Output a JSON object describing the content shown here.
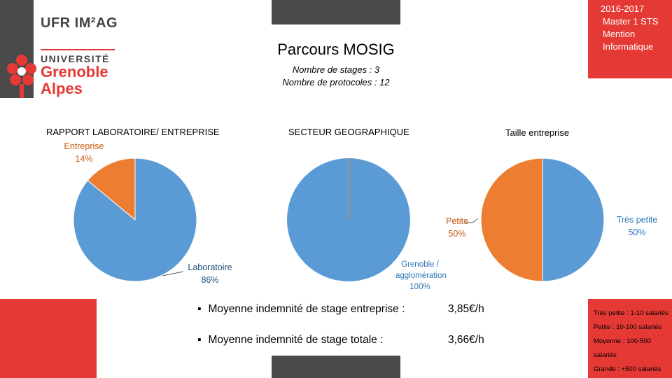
{
  "header": {
    "ufr_logo": "UFR IM²AG",
    "university": {
      "line1": "UNIVERSITÉ",
      "line2": "Grenoble",
      "line3": "Alpes"
    },
    "year": "2016-2017",
    "program": [
      "Master 1 STS",
      "Mention",
      "Informatique"
    ],
    "title": "Parcours MOSIG",
    "subtitle": [
      "Nombre de stages : 3",
      "Nombre de protocoles : 12"
    ]
  },
  "colors": {
    "blue": "#5b9bd5",
    "orange": "#ed7d31",
    "red": "#e53935",
    "gray": "#4a4a4a"
  },
  "chart_data": [
    {
      "type": "pie",
      "title": "RAPPORT LABORATOIRE/ ENTREPRISE",
      "slices": [
        {
          "label": "Entreprise",
          "value": 14,
          "pct": "14%",
          "color": "#ed7d31"
        },
        {
          "label": "Laboratoire",
          "value": 86,
          "pct": "86%",
          "color": "#5b9bd5"
        }
      ]
    },
    {
      "type": "pie",
      "title": "SECTEUR GEOGRAPHIQUE",
      "slices": [
        {
          "label": "Grenoble / agglomération",
          "value": 100,
          "pct": "100%",
          "color": "#5b9bd5"
        }
      ]
    },
    {
      "type": "pie",
      "title": "Taille entreprise",
      "slices": [
        {
          "label": "Très petite",
          "value": 50,
          "pct": "50%",
          "color": "#5b9bd5"
        },
        {
          "label": "Petite",
          "value": 50,
          "pct": "50%",
          "color": "#ed7d31"
        }
      ]
    }
  ],
  "stats": [
    {
      "label": "Moyenne indemnité de stage entreprise :",
      "value": "3,85€/h"
    },
    {
      "label": "Moyenne indemnité de stage totale :",
      "value": "3,66€/h"
    }
  ],
  "size_legend": [
    "Très petite : 1-10 salariés",
    "Petite : 10-100 salariés",
    "Moyenne : 100-500 salariés",
    "Grande : +500 salariés"
  ]
}
